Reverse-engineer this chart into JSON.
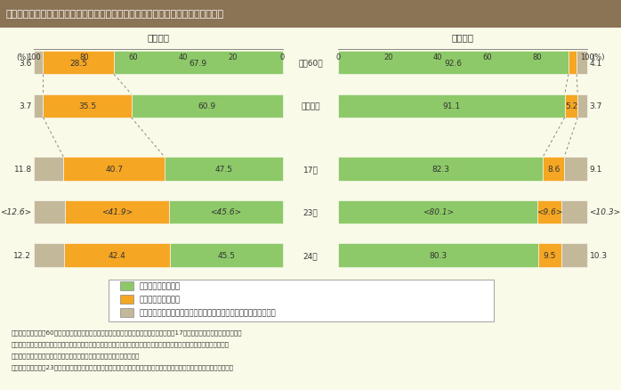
{
  "title": "第１－２－８図　雇用形態別に見た役員を除く雇用者の構成割合の推移（男女別）",
  "title_bg": "#8B7355",
  "title_color": "#FFFFFF",
  "bg_color": "#FAFAE8",
  "female_label": "「女性」",
  "male_label": "「男性」",
  "female_label2": "〈女性〉",
  "male_label2": "〈男性〉",
  "year_labels": [
    "昭和60年",
    "平成７年",
    "17年",
    "23年",
    "24年"
  ],
  "female_data": [
    {
      "year": "昭和60年",
      "seiki": 67.9,
      "part": 28.5,
      "other": 3.6,
      "italic": false
    },
    {
      "year": "平成７年",
      "seiki": 60.9,
      "part": 35.5,
      "other": 3.7,
      "italic": false
    },
    {
      "year": "17年",
      "seiki": 47.5,
      "part": 40.7,
      "other": 11.8,
      "italic": false
    },
    {
      "year": "23年",
      "seiki": 45.6,
      "part": 41.9,
      "other": 12.6,
      "italic": true
    },
    {
      "year": "24年",
      "seiki": 45.5,
      "part": 42.4,
      "other": 12.2,
      "italic": false
    }
  ],
  "male_data": [
    {
      "year": "昭和60年",
      "seiki": 92.6,
      "part": 3.3,
      "other": 4.1,
      "italic": false
    },
    {
      "year": "平成７年",
      "seiki": 91.1,
      "part": 5.2,
      "other": 3.7,
      "italic": false
    },
    {
      "year": "17年",
      "seiki": 82.3,
      "part": 8.6,
      "other": 9.1,
      "italic": false
    },
    {
      "year": "23年",
      "seiki": 80.1,
      "part": 9.6,
      "other": 10.3,
      "italic": true
    },
    {
      "year": "24年",
      "seiki": 80.3,
      "part": 9.5,
      "other": 10.3,
      "italic": false
    }
  ],
  "color_seiki": "#8DC968",
  "color_part": "#F5A623",
  "color_other": "#C4B89A",
  "legend_items": [
    "正規の職員・従業員",
    "パート・アルバイト",
    "その他（労働者派遣事業所の派遣社員，契約社員・嘱託，その他）"
  ]
}
